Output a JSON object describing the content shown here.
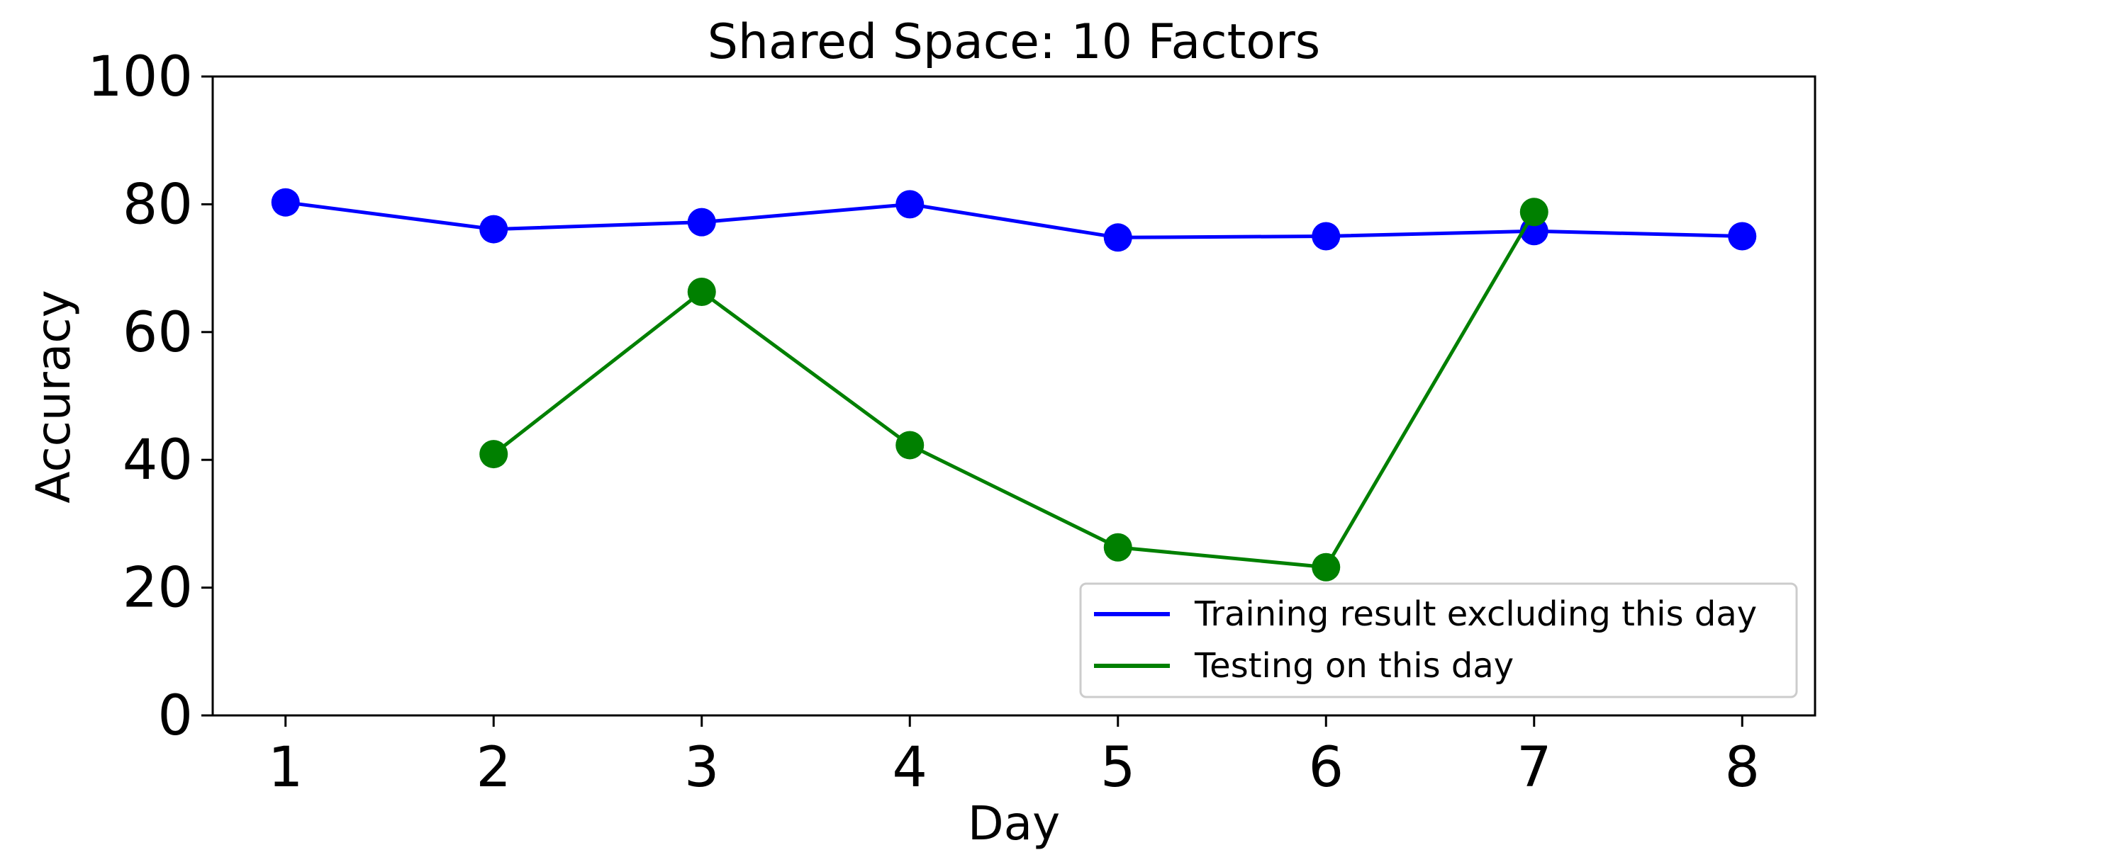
{
  "chart_data": {
    "type": "line",
    "title": "Shared Space: 10 Factors",
    "xlabel": "Day",
    "ylabel": "Accuracy",
    "x": [
      1,
      2,
      3,
      4,
      5,
      6,
      7,
      8
    ],
    "xlim": [
      0.65,
      8.35
    ],
    "ylim": [
      0,
      100
    ],
    "xticks": [
      1,
      2,
      3,
      4,
      5,
      6,
      7,
      8
    ],
    "yticks": [
      0,
      20,
      40,
      60,
      80,
      100
    ],
    "grid": false,
    "legend_position": "lower-right",
    "series": [
      {
        "name": "Training result excluding this day",
        "color": "#0000ff",
        "marker": "circle",
        "points": [
          {
            "x": 1,
            "y": 80.3
          },
          {
            "x": 2,
            "y": 76.1
          },
          {
            "x": 3,
            "y": 77.2
          },
          {
            "x": 4,
            "y": 80.0
          },
          {
            "x": 5,
            "y": 74.8
          },
          {
            "x": 6,
            "y": 75.0
          },
          {
            "x": 7,
            "y": 75.8
          },
          {
            "x": 8,
            "y": 75.0
          }
        ]
      },
      {
        "name": "Testing on this day",
        "color": "#008000",
        "marker": "circle",
        "points": [
          {
            "x": 2,
            "y": 40.9
          },
          {
            "x": 3,
            "y": 66.3
          },
          {
            "x": 4,
            "y": 42.3
          },
          {
            "x": 5,
            "y": 26.3
          },
          {
            "x": 6,
            "y": 23.2
          },
          {
            "x": 7,
            "y": 78.8
          }
        ]
      }
    ]
  }
}
